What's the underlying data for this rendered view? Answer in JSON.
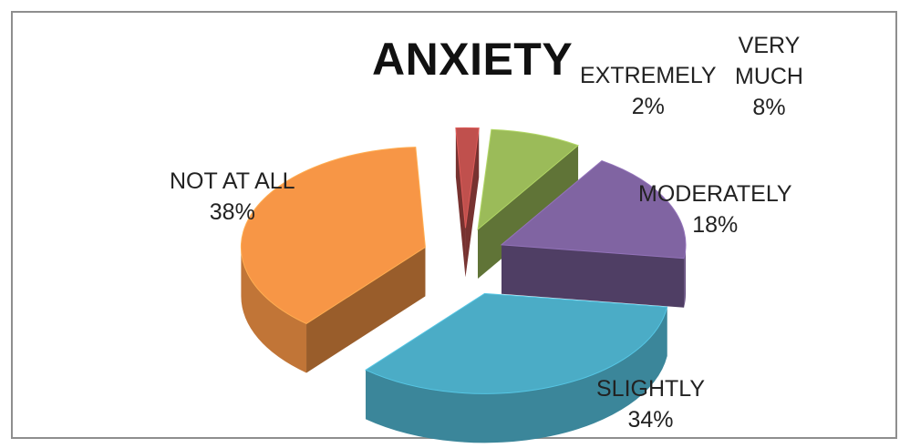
{
  "chart_data": {
    "type": "pie",
    "title": "ANXIETY",
    "categories": [
      "EXTREMELY",
      "VERY MUCH",
      "MODERATELY",
      "SLIGHTLY",
      "NOT AT ALL"
    ],
    "values": [
      2,
      8,
      18,
      34,
      38
    ],
    "value_labels": [
      "2%",
      "8%",
      "18%",
      "34%",
      "38%"
    ],
    "series": [
      {
        "values": [
          2,
          8,
          18,
          34,
          38
        ]
      }
    ],
    "legend": "none",
    "exploded": true,
    "colors": [
      "#c0504d",
      "#9bbb59",
      "#8064a2",
      "#4bacc6",
      "#f79646"
    ]
  },
  "labels": {
    "extremely": {
      "name": "EXTREMELY",
      "pct": "2%"
    },
    "very_much": {
      "name_line1": "VERY",
      "name_line2": "MUCH",
      "pct": "8%"
    },
    "moderately": {
      "name": "MODERATELY",
      "pct": "18%"
    },
    "slightly": {
      "name": "SLIGHTLY",
      "pct": "34%"
    },
    "not_at_all": {
      "name": "NOT AT ALL",
      "pct": "38%"
    }
  }
}
